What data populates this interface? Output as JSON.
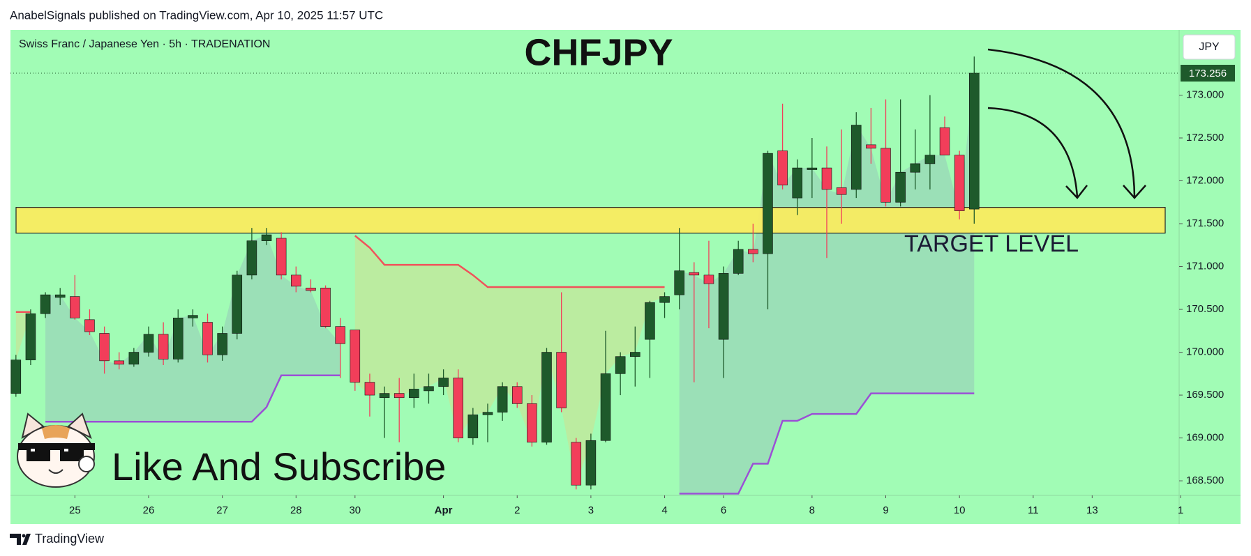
{
  "header": "AnabelSignals published on TradingView.com, Apr 10, 2025 11:57 UTC",
  "footer_brand": "TradingView",
  "chart_data": {
    "type": "candlestick",
    "symbol_info": "Swiss Franc / Japanese Yen · 5h · TRADENATION",
    "title": "CHFJPY",
    "currency": "JPY",
    "annotations": [
      "TARGET LEVEL",
      "Like And Subscribe"
    ],
    "up_color": "#1e5a2b",
    "down_color": "#f23e5a",
    "background": "#a1fcb5",
    "open": [
      169.52,
      169.91,
      170.45,
      170.64,
      170.65,
      170.38,
      170.22,
      169.9,
      169.86,
      170.0,
      170.21,
      169.92,
      170.4,
      170.35,
      169.97,
      170.22,
      170.9,
      171.3,
      171.33,
      170.9,
      170.75,
      170.75,
      170.3,
      170.26,
      169.65,
      169.47,
      169.52,
      169.47,
      169.55,
      169.6,
      169.7,
      169.0,
      169.27,
      169.3,
      169.6,
      169.4,
      168.95,
      170.0,
      168.95,
      168.45,
      168.97,
      169.75,
      169.95,
      170.15,
      170.58,
      170.67,
      170.93,
      170.9,
      170.15,
      170.92,
      171.2,
      171.15,
      172.35,
      171.8,
      172.13,
      172.15,
      171.92,
      171.9,
      172.42,
      172.38,
      171.75,
      172.1,
      172.2,
      172.62,
      172.3,
      171.67
    ],
    "high": [
      169.97,
      170.5,
      170.7,
      170.75,
      170.9,
      170.5,
      170.3,
      170.0,
      170.05,
      170.3,
      170.35,
      170.5,
      170.5,
      170.45,
      170.3,
      170.95,
      171.45,
      171.45,
      171.4,
      171.0,
      170.85,
      170.78,
      170.4,
      170.26,
      169.75,
      169.6,
      169.7,
      169.75,
      169.75,
      169.8,
      169.8,
      169.35,
      169.4,
      169.65,
      169.65,
      169.5,
      170.05,
      170.7,
      169.0,
      169.05,
      170.25,
      170.0,
      170.3,
      170.6,
      170.7,
      171.45,
      171.05,
      171.3,
      171.0,
      171.3,
      171.5,
      172.35,
      172.9,
      172.25,
      172.5,
      172.4,
      172.6,
      172.8,
      172.85,
      172.95,
      172.95,
      172.6,
      173.0,
      172.75,
      172.35,
      173.45
    ],
    "low": [
      169.48,
      169.85,
      170.4,
      170.55,
      170.38,
      170.2,
      169.75,
      169.8,
      169.83,
      169.95,
      169.85,
      169.88,
      170.3,
      169.88,
      169.9,
      170.15,
      170.85,
      171.25,
      170.85,
      170.7,
      170.7,
      170.28,
      169.7,
      169.55,
      169.25,
      169.0,
      168.95,
      169.35,
      169.4,
      169.5,
      168.95,
      168.92,
      168.95,
      169.2,
      169.35,
      168.9,
      168.92,
      169.3,
      168.4,
      168.4,
      168.95,
      169.5,
      169.6,
      169.7,
      170.4,
      170.5,
      169.65,
      170.28,
      169.7,
      170.9,
      171.05,
      170.5,
      171.9,
      171.6,
      171.8,
      171.1,
      171.5,
      171.8,
      172.2,
      171.7,
      171.7,
      171.9,
      171.9,
      172.3,
      171.55,
      171.5
    ],
    "close": [
      169.91,
      170.45,
      170.67,
      170.67,
      170.4,
      170.24,
      169.9,
      169.86,
      170.0,
      170.21,
      169.92,
      170.4,
      170.43,
      169.97,
      170.22,
      170.9,
      171.3,
      171.37,
      170.9,
      170.77,
      170.72,
      170.3,
      170.1,
      169.65,
      169.5,
      169.52,
      169.47,
      169.57,
      169.6,
      169.7,
      169.0,
      169.27,
      169.3,
      169.6,
      169.4,
      168.95,
      170.0,
      169.35,
      168.45,
      168.97,
      169.75,
      169.95,
      170.0,
      170.58,
      170.65,
      170.95,
      170.9,
      170.8,
      170.92,
      171.2,
      171.15,
      172.32,
      171.95,
      172.15,
      172.15,
      171.9,
      171.84,
      172.65,
      172.38,
      171.75,
      172.1,
      172.2,
      172.3,
      172.3,
      171.65,
      173.256
    ],
    "indicators": [
      {
        "color": "#f0525a",
        "fill": "rgba(235,205,120,0.35)",
        "values": [
          170.47,
          170.47,
          null,
          null,
          null,
          null,
          null,
          null,
          null,
          null,
          null,
          null,
          null,
          null,
          null,
          null,
          null,
          null,
          null,
          null,
          null,
          null,
          null,
          171.36,
          171.22,
          171.02,
          171.02,
          171.02,
          171.02,
          171.02,
          171.02,
          170.9,
          170.76,
          170.76,
          170.76,
          170.76,
          170.76,
          170.76,
          170.76,
          170.76,
          170.76,
          170.76,
          170.76,
          170.76,
          170.76,
          null,
          null,
          null,
          null,
          null,
          null,
          null,
          null,
          null,
          null,
          null,
          null,
          null,
          null,
          null,
          null,
          null,
          null,
          null,
          null,
          null
        ]
      },
      {
        "color": "#9b4fd6",
        "fill": "rgba(140,150,190,0.28)",
        "values": [
          null,
          null,
          169.19,
          169.19,
          169.19,
          169.19,
          169.19,
          169.19,
          169.19,
          169.19,
          169.19,
          169.19,
          169.19,
          169.19,
          169.19,
          169.19,
          169.19,
          169.36,
          169.73,
          169.73,
          169.73,
          169.73,
          169.73,
          null,
          null,
          null,
          null,
          null,
          null,
          null,
          null,
          null,
          null,
          null,
          null,
          null,
          null,
          null,
          null,
          null,
          null,
          null,
          null,
          null,
          null,
          168.35,
          168.35,
          168.35,
          168.35,
          168.35,
          168.7,
          168.7,
          169.2,
          169.2,
          169.28,
          169.28,
          169.28,
          169.28,
          169.52,
          169.52,
          169.52,
          169.52,
          169.52,
          169.52,
          169.52,
          169.52
        ]
      }
    ],
    "target_zone": {
      "low": 171.39,
      "high": 171.69,
      "color": "#fbec5d"
    },
    "xlim": [
      -0.37,
      78.9
    ],
    "xticks": [
      {
        "value": 4,
        "label": "25"
      },
      {
        "value": 9,
        "label": "26"
      },
      {
        "value": 14,
        "label": "27"
      },
      {
        "value": 19,
        "label": "28"
      },
      {
        "value": 23,
        "label": "30"
      },
      {
        "value": 29,
        "label": "Apr"
      },
      {
        "value": 34,
        "label": "2"
      },
      {
        "value": 39,
        "label": "3"
      },
      {
        "value": 44,
        "label": "4"
      },
      {
        "value": 48,
        "label": "6"
      },
      {
        "value": 54,
        "label": "8"
      },
      {
        "value": 59,
        "label": "9"
      },
      {
        "value": 64,
        "label": "10"
      },
      {
        "value": 69,
        "label": "11"
      },
      {
        "value": 73,
        "label": "13"
      },
      {
        "value": 79,
        "label": "1"
      }
    ],
    "ylim": [
      168.33,
      173.76
    ],
    "yticks": [
      {
        "value": 168.5,
        "label": "168.500"
      },
      {
        "value": 169,
        "label": "169.000"
      },
      {
        "value": 169.5,
        "label": "169.500"
      },
      {
        "value": 170,
        "label": "170.000"
      },
      {
        "value": 170.5,
        "label": "170.500"
      },
      {
        "value": 171,
        "label": "171.000"
      },
      {
        "value": 171.5,
        "label": "171.500"
      },
      {
        "value": 172,
        "label": "172.000"
      },
      {
        "value": 172.5,
        "label": "172.500"
      },
      {
        "value": 173,
        "label": "173.000"
      }
    ]
  }
}
